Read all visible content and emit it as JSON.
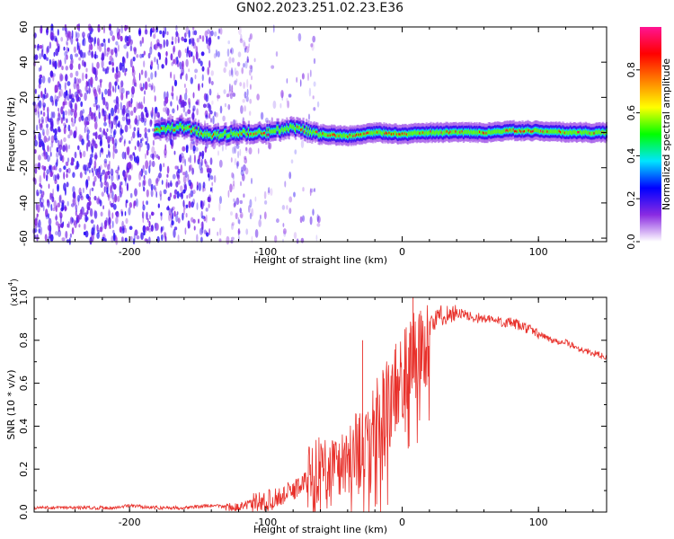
{
  "title": "GN02.2023.251.02.23.E36",
  "top_panel": {
    "ylabel": "Frequency (Hz)",
    "xlabel": "Height of straight line (km)",
    "colorbar_label": "Normalized spectral amplitude"
  },
  "bottom_panel": {
    "ylabel": "SNR (10 * v/v)",
    "xlabel": "Height of straight line (km)",
    "y_multiplier": "(x10",
    "y_multiplier_exp": "4",
    "y_multiplier_close": ")"
  },
  "colors": {
    "snr_line": "#e8302a",
    "scatter": "#8a2be2"
  },
  "chart_data": [
    {
      "type": "heatmap",
      "title": "GN02.2023.251.02.23.E36",
      "xlabel": "Height of straight line (km)",
      "ylabel": "Frequency (Hz)",
      "xlim": [
        -270,
        150
      ],
      "ylim": [
        -62,
        60
      ],
      "x_ticks": [
        -200,
        -100,
        0,
        100
      ],
      "y_ticks": [
        -60,
        -40,
        -20,
        0,
        20,
        40,
        60
      ],
      "colorbar": {
        "label": "Normalized spectral amplitude",
        "range": [
          0.0,
          1.0
        ],
        "ticks": [
          0.0,
          0.2,
          0.4,
          0.6,
          0.8
        ],
        "colormap": [
          "#ffffff",
          "#8a2be2",
          "#0000ff",
          "#00e5ff",
          "#00ff00",
          "#ffff00",
          "#ff8000",
          "#ff0000",
          "#ff1493"
        ]
      },
      "ridge": {
        "x": [
          -180,
          -160,
          -140,
          -120,
          -100,
          -80,
          -60,
          -40,
          -20,
          0,
          20,
          40,
          60,
          80,
          100,
          120,
          150
        ],
        "y": [
          2,
          3,
          -2,
          0,
          0,
          3,
          -1,
          -2,
          0,
          -1,
          0,
          0,
          0,
          1,
          1,
          0,
          0
        ]
      },
      "grid": false
    },
    {
      "type": "line",
      "xlabel": "Height of straight line (km)",
      "ylabel": "SNR (10 * v/v)",
      "xlim": [
        -270,
        150
      ],
      "ylim": [
        0.0,
        1.0
      ],
      "y_scale_label": "x10^4",
      "x_ticks": [
        -200,
        -100,
        0,
        100
      ],
      "y_ticks": [
        0.0,
        0.2,
        0.4,
        0.6,
        0.8,
        1.0
      ],
      "series": [
        {
          "x": [
            -270,
            -250,
            -230,
            -210,
            -200,
            -180,
            -160,
            -140,
            -120,
            -110,
            -100,
            -90,
            -80,
            -70,
            -60,
            -50,
            -40,
            -30,
            -25,
            -20,
            -15,
            -10,
            -5,
            0,
            5,
            10,
            15,
            20,
            25,
            30,
            35,
            40,
            45,
            50,
            60,
            70,
            80,
            90,
            100,
            110,
            120,
            130,
            140,
            150
          ],
          "values": [
            0.02,
            0.02,
            0.02,
            0.02,
            0.03,
            0.02,
            0.02,
            0.03,
            0.02,
            0.04,
            0.05,
            0.07,
            0.1,
            0.15,
            0.18,
            0.2,
            0.25,
            0.3,
            0.38,
            0.4,
            0.44,
            0.5,
            0.58,
            0.64,
            0.68,
            0.75,
            0.8,
            0.86,
            0.9,
            0.92,
            0.92,
            0.93,
            0.92,
            0.91,
            0.9,
            0.89,
            0.88,
            0.86,
            0.83,
            0.8,
            0.79,
            0.76,
            0.74,
            0.72
          ],
          "peaks": [
            {
              "x": -29,
              "y": 0.8
            },
            {
              "x": 8,
              "y": 1.0
            }
          ]
        }
      ],
      "grid": false
    }
  ]
}
